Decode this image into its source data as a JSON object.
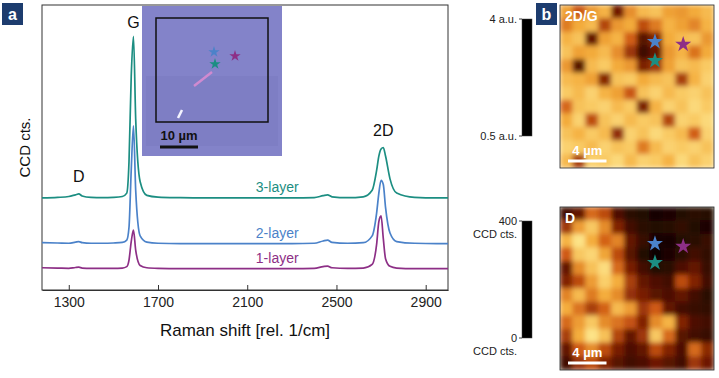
{
  "chart_data": [
    {
      "type": "line",
      "panel": "a",
      "ylabel": "CCD cts.",
      "xlabel": "Raman shift [rel. 1/cm]",
      "x": [
        1180,
        1250,
        1300,
        1330,
        1345,
        1360,
        1400,
        1450,
        1500,
        1540,
        1560,
        1570,
        1580,
        1590,
        1600,
        1620,
        1650,
        1700,
        1800,
        1900,
        2000,
        2100,
        2200,
        2300,
        2400,
        2440,
        2460,
        2480,
        2550,
        2620,
        2660,
        2680,
        2690,
        2700,
        2710,
        2720,
        2740,
        2770,
        2850,
        2950,
        3000
      ],
      "xlim": [
        1180,
        3000
      ],
      "xticks": [
        1300,
        1700,
        2100,
        2500,
        2900
      ],
      "ylim": [
        0,
        100
      ],
      "tick_labels": "x",
      "series": [
        {
          "name": "3-layer",
          "color": "#1c8e82",
          "values": [
            32.3,
            32.5,
            32.8,
            33.4,
            33.7,
            33.0,
            32.5,
            32.4,
            32.5,
            32.8,
            34,
            45,
            75,
            89,
            60,
            38,
            33.2,
            32.6,
            32.4,
            32.3,
            32.3,
            32.3,
            32.3,
            32.3,
            32.4,
            33.1,
            33.4,
            32.7,
            32.4,
            32.7,
            35,
            42,
            47,
            49.5,
            50,
            47,
            39,
            34,
            32.5,
            32.3,
            32.3
          ]
        },
        {
          "name": "2-layer",
          "color": "#4b82c9",
          "values": [
            16.6,
            16.5,
            16.4,
            16.8,
            17.0,
            16.6,
            16.4,
            16.4,
            16.5,
            16.7,
            17.5,
            22,
            42,
            57.6,
            35,
            19,
            16.8,
            16.4,
            16.3,
            16.3,
            16.3,
            16.3,
            16.3,
            16.3,
            16.4,
            17.2,
            17.5,
            16.7,
            16.4,
            16.6,
            19,
            27,
            34,
            38.5,
            37,
            29,
            20,
            17,
            16.4,
            16.3,
            16.3
          ]
        },
        {
          "name": "1-layer",
          "color": "#8d2f86",
          "values": [
            7.8,
            7.7,
            7.6,
            7.9,
            8.0,
            7.7,
            7.6,
            7.6,
            7.6,
            7.7,
            8.2,
            10.5,
            17,
            21,
            14,
            8.6,
            7.8,
            7.6,
            7.5,
            7.5,
            7.5,
            7.5,
            7.5,
            7.5,
            7.6,
            8.2,
            8.4,
            7.8,
            7.6,
            7.7,
            9,
            16,
            24,
            26,
            18,
            11,
            8.3,
            7.7,
            7.5,
            7.5,
            7.5
          ]
        }
      ],
      "annotations": [
        {
          "text": "D",
          "x": 1345,
          "y": 38
        },
        {
          "text": "G",
          "x": 1590,
          "y": 92
        },
        {
          "text": "2D",
          "x": 2710,
          "y": 54
        }
      ],
      "inset": {
        "scalebar": "10 µm"
      }
    },
    {
      "type": "heatmap",
      "panel": "b",
      "title": "2D/G",
      "x": [
        0.5,
        1.5,
        2.5,
        3.5,
        4.5,
        5.5,
        6.5,
        7.5,
        8.5,
        9.5,
        10.5,
        11.5
      ],
      "y": [
        0.5,
        1.5,
        2.5,
        3.5,
        4.5,
        5.5,
        6.5,
        7.5,
        8.5,
        9.5,
        10.5,
        11.5
      ],
      "xlim": [
        0,
        12
      ],
      "ylim": [
        12,
        0
      ],
      "tick_labels": false,
      "z": [
        [
          3.0,
          2.2,
          2.9,
          3.2,
          1.4,
          2.8,
          3.3,
          3.4,
          3.0,
          2.9,
          3.1,
          3.3
        ],
        [
          2.6,
          3.1,
          3.3,
          2.0,
          2.9,
          3.1,
          2.1,
          2.6,
          3.2,
          3.0,
          2.7,
          3.2
        ],
        [
          3.2,
          3.4,
          1.3,
          3.0,
          3.2,
          2.3,
          1.2,
          1.6,
          3.1,
          3.3,
          3.4,
          2.9
        ],
        [
          3.4,
          3.0,
          3.1,
          3.3,
          2.8,
          1.8,
          1.0,
          1.3,
          2.9,
          3.2,
          2.5,
          3.1
        ],
        [
          2.9,
          1.2,
          3.3,
          3.5,
          3.1,
          2.9,
          1.5,
          1.8,
          3.0,
          3.4,
          3.3,
          3.5
        ],
        [
          3.3,
          3.2,
          3.0,
          1.6,
          3.4,
          3.5,
          3.1,
          3.3,
          3.4,
          1.9,
          3.2,
          3.6
        ],
        [
          3.5,
          3.3,
          3.6,
          3.2,
          3.0,
          2.2,
          3.4,
          3.6,
          3.3,
          3.5,
          3.6,
          3.4
        ],
        [
          2.4,
          3.4,
          3.5,
          3.6,
          3.3,
          3.5,
          1.5,
          3.2,
          3.6,
          3.4,
          3.7,
          3.5
        ],
        [
          3.1,
          3.6,
          2.1,
          3.4,
          3.6,
          3.3,
          3.5,
          3.4,
          2.0,
          3.6,
          3.5,
          3.7
        ],
        [
          3.4,
          3.2,
          3.5,
          3.3,
          1.7,
          3.6,
          3.4,
          3.7,
          3.5,
          3.3,
          2.3,
          3.6
        ],
        [
          3.6,
          3.5,
          3.3,
          3.6,
          3.4,
          3.5,
          2.6,
          3.3,
          3.6,
          3.5,
          3.6,
          3.4
        ],
        [
          3.3,
          1.9,
          3.6,
          3.5,
          3.7,
          3.3,
          3.6,
          3.5,
          3.2,
          3.7,
          3.4,
          3.6
        ]
      ],
      "colorbar": {
        "range": [
          0.5,
          4
        ],
        "ticks": [
          {
            "value": 4,
            "label": "4 a.u."
          },
          {
            "value": 0.5,
            "label": "0.5 a.u."
          }
        ]
      },
      "scalebar": "4 µm",
      "points": [
        {
          "x": 7.4,
          "y": 2.7,
          "color": "#4b82c9"
        },
        {
          "x": 7.4,
          "y": 4.1,
          "color": "#1c8e82"
        },
        {
          "x": 9.6,
          "y": 2.9,
          "color": "#8d2f86"
        }
      ]
    },
    {
      "type": "heatmap",
      "title": "D",
      "x": [
        0.5,
        1.5,
        2.5,
        3.5,
        4.5,
        5.5,
        6.5,
        7.5,
        8.5,
        9.5,
        10.5,
        11.5
      ],
      "y": [
        0.5,
        1.5,
        2.5,
        3.5,
        4.5,
        5.5,
        6.5,
        7.5,
        8.5,
        9.5,
        10.5,
        11.5
      ],
      "xlim": [
        0,
        12
      ],
      "ylim": [
        12,
        0
      ],
      "tick_labels": false,
      "z": [
        [
          60,
          90,
          220,
          180,
          70,
          40,
          30,
          20,
          25,
          30,
          40,
          35
        ],
        [
          150,
          280,
          340,
          260,
          120,
          60,
          40,
          30,
          35,
          45,
          30,
          25
        ],
        [
          310,
          380,
          300,
          210,
          250,
          90,
          50,
          20,
          20,
          30,
          40,
          50
        ],
        [
          200,
          340,
          360,
          290,
          180,
          80,
          30,
          15,
          25,
          40,
          60,
          45
        ],
        [
          90,
          260,
          330,
          370,
          220,
          110,
          60,
          30,
          40,
          70,
          90,
          50
        ],
        [
          120,
          180,
          280,
          350,
          300,
          160,
          90,
          70,
          60,
          180,
          120,
          60
        ],
        [
          250,
          320,
          240,
          300,
          260,
          140,
          110,
          80,
          70,
          90,
          60,
          40
        ],
        [
          300,
          230,
          160,
          210,
          320,
          280,
          150,
          200,
          90,
          60,
          50,
          45
        ],
        [
          220,
          280,
          340,
          260,
          230,
          190,
          120,
          260,
          310,
          120,
          70,
          60
        ],
        [
          160,
          300,
          380,
          330,
          170,
          90,
          150,
          340,
          220,
          80,
          60,
          50
        ],
        [
          90,
          200,
          260,
          180,
          110,
          70,
          90,
          180,
          120,
          70,
          220,
          130
        ],
        [
          60,
          140,
          180,
          120,
          80,
          60,
          70,
          100,
          80,
          60,
          150,
          100
        ]
      ],
      "colorbar": {
        "range": [
          0,
          400
        ],
        "ticks": [
          {
            "value": 400,
            "label": "400 CCD cts."
          },
          {
            "value": 0,
            "label": "0 CCD cts."
          }
        ]
      },
      "scalebar": "4 µm",
      "points": [
        {
          "x": 7.4,
          "y": 2.7,
          "color": "#4b82c9"
        },
        {
          "x": 7.4,
          "y": 4.1,
          "color": "#1c8e82"
        },
        {
          "x": 9.6,
          "y": 2.9,
          "color": "#8d2f86"
        }
      ]
    }
  ]
}
